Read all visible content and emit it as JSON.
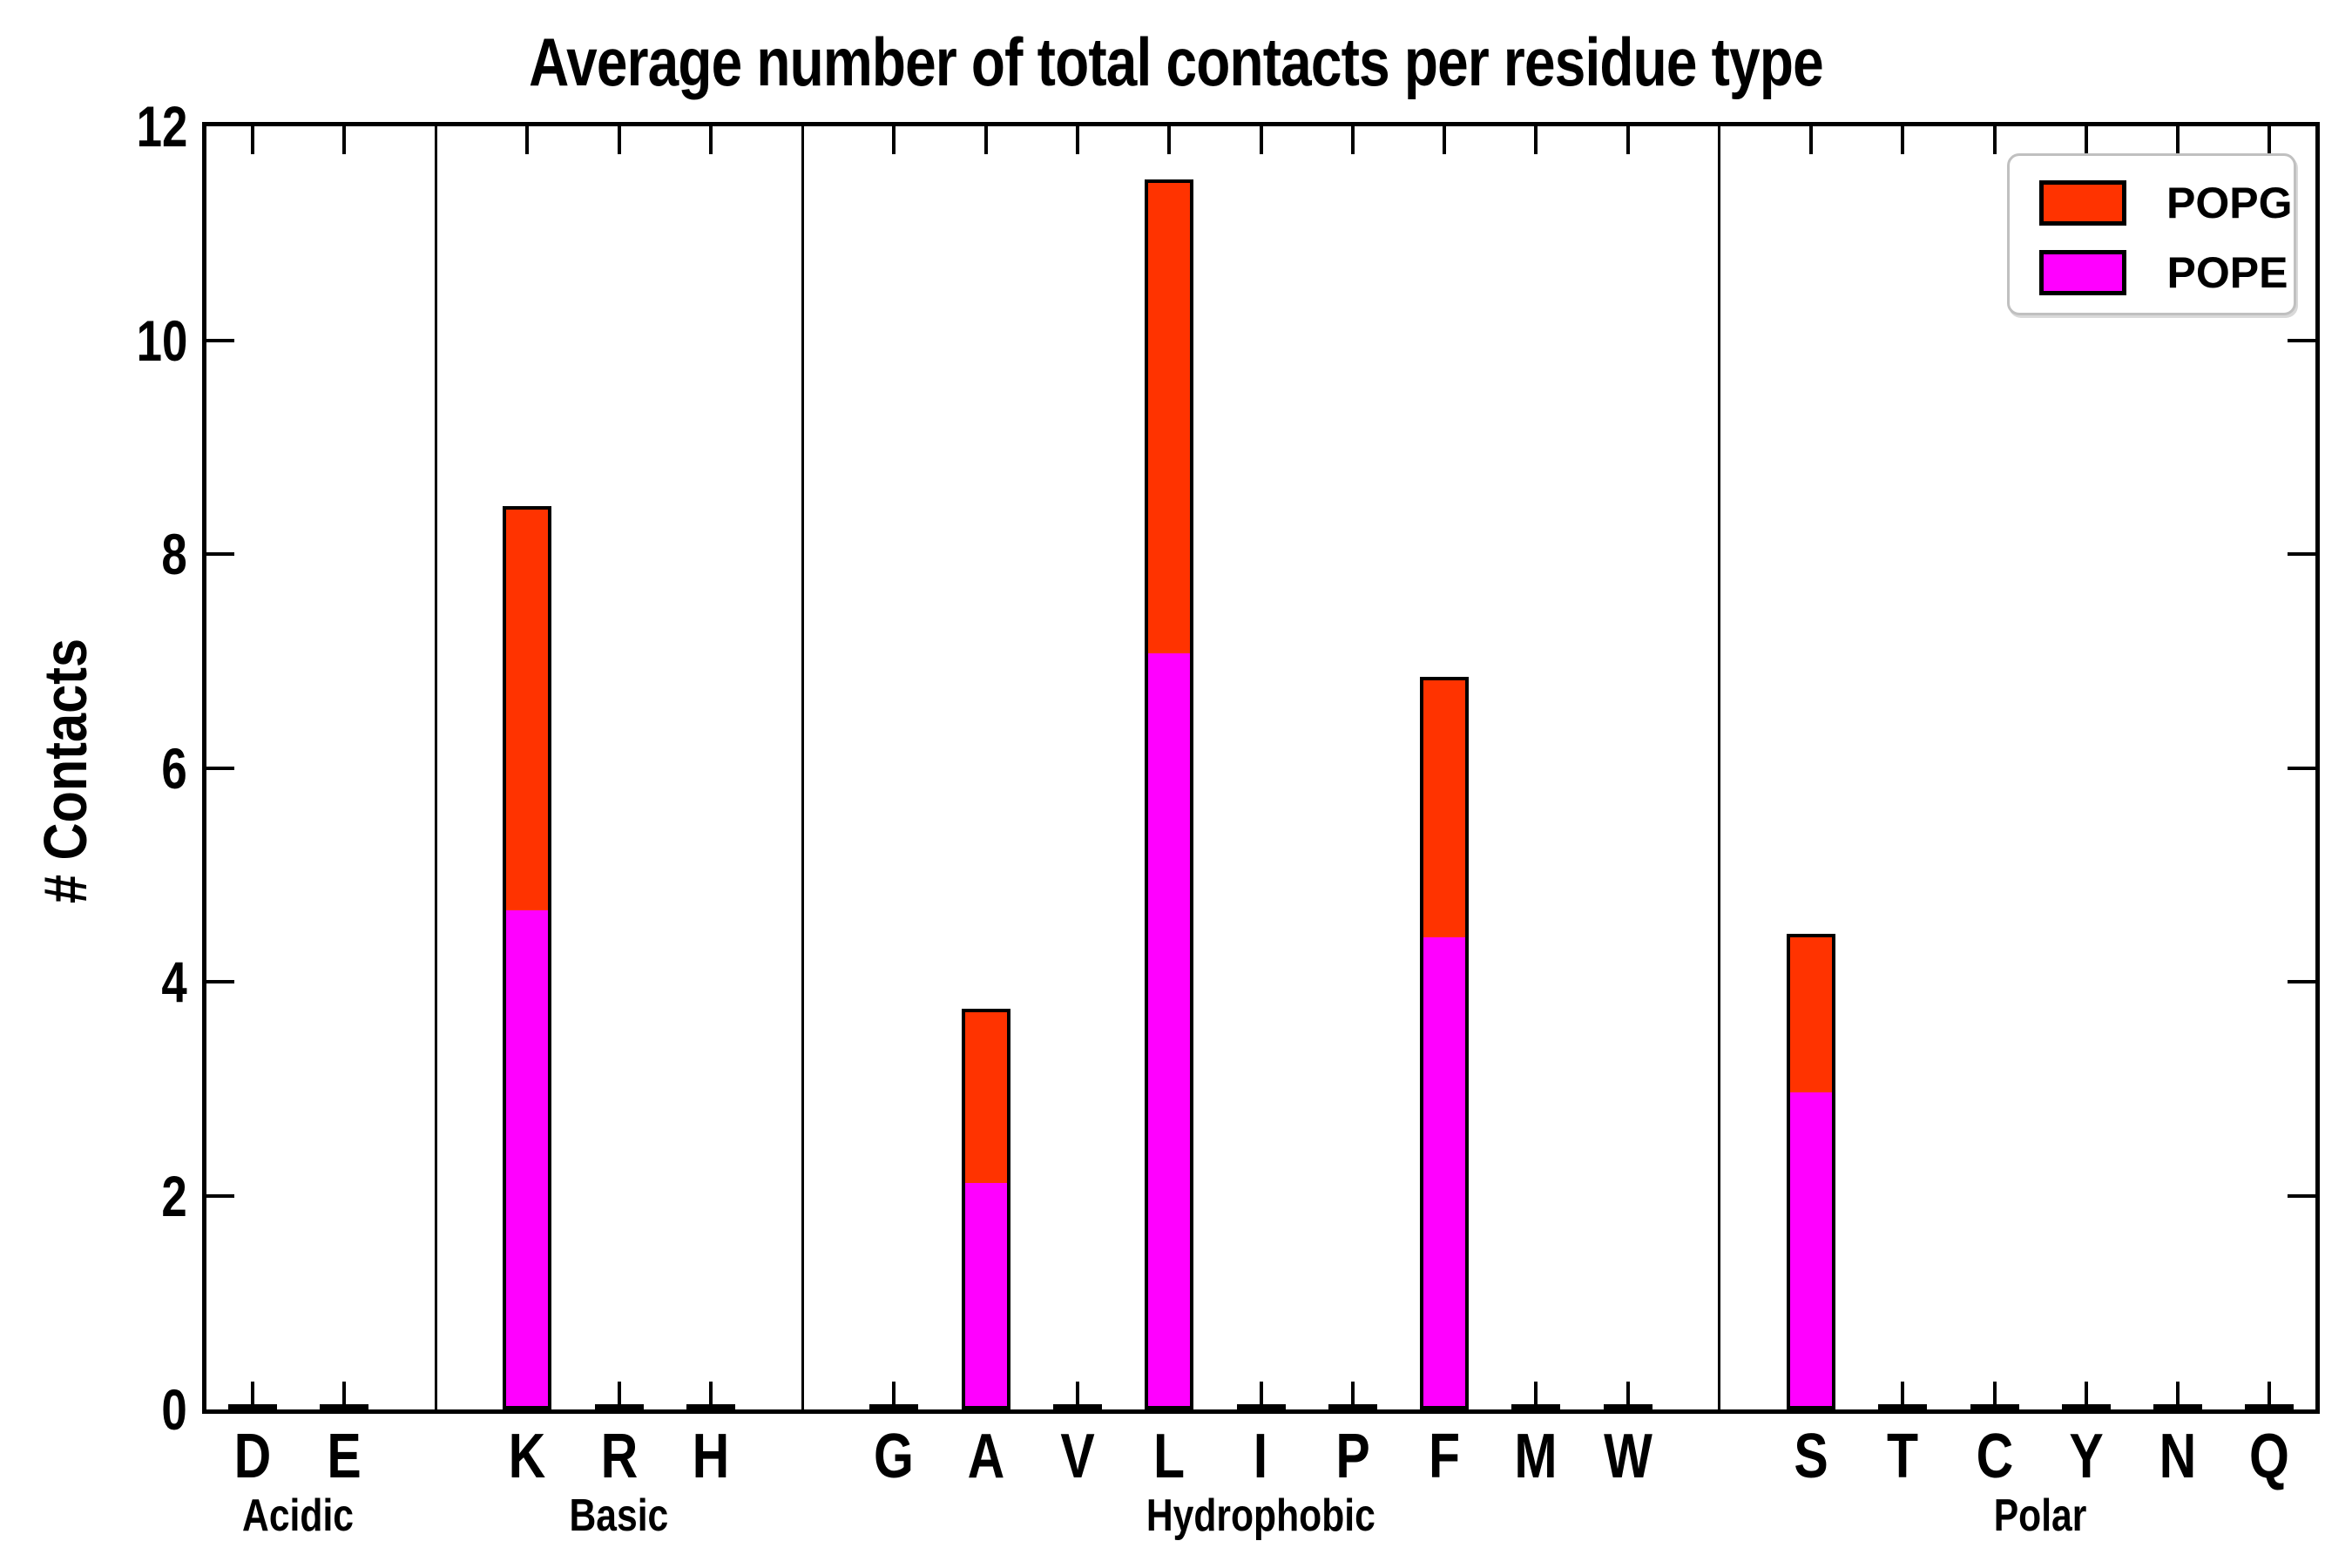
{
  "title": "Average number of total contacts per residue type",
  "y_axis": {
    "label": "# Contacts",
    "ticks": [
      "0",
      "2",
      "4",
      "6",
      "8",
      "10",
      "12"
    ],
    "tick_values": [
      0,
      2,
      4,
      6,
      8,
      10,
      12
    ],
    "min": 0,
    "max": 12
  },
  "legend": {
    "entries": [
      {
        "label": "POPG",
        "color": "#ff3300"
      },
      {
        "label": "POPE",
        "color": "#ff00ff"
      }
    ],
    "position": "upper right"
  },
  "chart_data": {
    "type": "bar",
    "stacked": true,
    "grid": false,
    "ylim": [
      0,
      12
    ],
    "yticks": [
      0,
      2,
      4,
      6,
      8,
      10,
      12
    ],
    "series_order_bottom_to_top": [
      "POPE",
      "POPG"
    ],
    "series_colors": {
      "POPE": "#ff00ff",
      "POPG": "#ff3300"
    },
    "title": "Average number of total contacts per residue type",
    "xlabel": "",
    "ylabel": "# Contacts",
    "groups": [
      {
        "label": "Acidic",
        "residues": [
          {
            "label": "D",
            "POPE": 0.03,
            "POPG": 0
          },
          {
            "label": "E",
            "POPE": 0.03,
            "POPG": 0
          }
        ]
      },
      {
        "label": "Basic",
        "residues": [
          {
            "label": "K",
            "POPE": 4.7,
            "POPG": 3.75
          },
          {
            "label": "R",
            "POPE": 0.03,
            "POPG": 0
          },
          {
            "label": "H",
            "POPE": 0.03,
            "POPG": 0
          }
        ]
      },
      {
        "label": "Hydrophobic",
        "residues": [
          {
            "label": "G",
            "POPE": 0.03,
            "POPG": 0
          },
          {
            "label": "A",
            "POPE": 2.15,
            "POPG": 1.6
          },
          {
            "label": "V",
            "POPE": 0.03,
            "POPG": 0
          },
          {
            "label": "L",
            "POPE": 7.1,
            "POPG": 4.4
          },
          {
            "label": "I",
            "POPE": 0.03,
            "POPG": 0
          },
          {
            "label": "P",
            "POPE": 0.03,
            "POPG": 0
          },
          {
            "label": "F",
            "POPE": 4.45,
            "POPG": 2.4
          },
          {
            "label": "M",
            "POPE": 0.03,
            "POPG": 0
          },
          {
            "label": "W",
            "POPE": 0.03,
            "POPG": 0
          }
        ]
      },
      {
        "label": "Polar",
        "residues": [
          {
            "label": "S",
            "POPE": 3.0,
            "POPG": 1.45
          },
          {
            "label": "T",
            "POPE": 0.03,
            "POPG": 0
          },
          {
            "label": "C",
            "POPE": 0.03,
            "POPG": 0
          },
          {
            "label": "Y",
            "POPE": 0.03,
            "POPG": 0
          },
          {
            "label": "N",
            "POPE": 0.03,
            "POPG": 0
          },
          {
            "label": "Q",
            "POPE": 0.03,
            "POPG": 0
          }
        ]
      }
    ]
  }
}
